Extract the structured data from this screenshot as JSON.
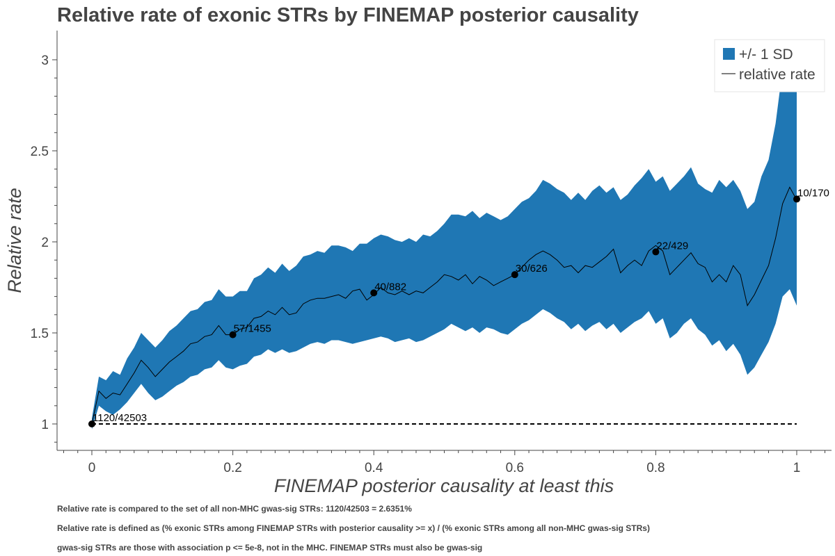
{
  "chart_data": {
    "type": "area",
    "title": "Relative rate of exonic STRs by FINEMAP posterior causality",
    "xlabel": "FINEMAP posterior causality at least this",
    "ylabel": "Relative rate",
    "xlim": [
      -0.05,
      1.05
    ],
    "ylim": [
      0.87,
      3.12
    ],
    "x_ticks": [
      0,
      0.2,
      0.4,
      0.6,
      0.8,
      1
    ],
    "x_tick_labels": [
      "0",
      "0.2",
      "0.4",
      "0.6",
      "0.8",
      "1"
    ],
    "y_ticks": [
      1,
      1.5,
      2,
      2.5,
      3
    ],
    "y_tick_labels": [
      "1",
      "1.5",
      "2",
      "2.5",
      "3"
    ],
    "grid": false,
    "legend_position": "top-right",
    "band_color": "#1f77b4",
    "line_color": "#000000",
    "baseline": 1,
    "series": [
      {
        "name": "+/- 1 SD",
        "kind": "band",
        "x": [
          0,
          0.01,
          0.02,
          0.03,
          0.04,
          0.05,
          0.06,
          0.07,
          0.08,
          0.09,
          0.1,
          0.11,
          0.12,
          0.13,
          0.14,
          0.15,
          0.16,
          0.17,
          0.18,
          0.19,
          0.2,
          0.21,
          0.22,
          0.23,
          0.24,
          0.25,
          0.26,
          0.27,
          0.28,
          0.29,
          0.3,
          0.31,
          0.32,
          0.33,
          0.34,
          0.35,
          0.36,
          0.37,
          0.38,
          0.39,
          0.4,
          0.41,
          0.42,
          0.43,
          0.44,
          0.45,
          0.46,
          0.47,
          0.48,
          0.49,
          0.5,
          0.51,
          0.52,
          0.53,
          0.54,
          0.55,
          0.56,
          0.57,
          0.58,
          0.59,
          0.6,
          0.61,
          0.62,
          0.63,
          0.64,
          0.65,
          0.66,
          0.67,
          0.68,
          0.69,
          0.7,
          0.71,
          0.72,
          0.73,
          0.74,
          0.75,
          0.76,
          0.77,
          0.78,
          0.79,
          0.8,
          0.81,
          0.82,
          0.83,
          0.84,
          0.85,
          0.86,
          0.87,
          0.88,
          0.89,
          0.9,
          0.91,
          0.92,
          0.93,
          0.94,
          0.95,
          0.96,
          0.97,
          0.98,
          0.99,
          1.0
        ],
        "upper": [
          1.03,
          1.26,
          1.24,
          1.29,
          1.27,
          1.36,
          1.42,
          1.5,
          1.46,
          1.42,
          1.46,
          1.51,
          1.54,
          1.58,
          1.62,
          1.63,
          1.67,
          1.68,
          1.74,
          1.7,
          1.7,
          1.73,
          1.73,
          1.8,
          1.82,
          1.86,
          1.83,
          1.88,
          1.84,
          1.87,
          1.92,
          1.93,
          1.95,
          1.94,
          1.98,
          1.98,
          1.97,
          1.95,
          1.99,
          1.99,
          2.02,
          2.04,
          2.03,
          2.01,
          2.0,
          2.02,
          2.0,
          2.04,
          2.03,
          2.06,
          2.1,
          2.15,
          2.15,
          2.14,
          2.17,
          2.13,
          2.16,
          2.14,
          2.12,
          2.14,
          2.18,
          2.22,
          2.24,
          2.28,
          2.34,
          2.32,
          2.29,
          2.27,
          2.23,
          2.27,
          2.23,
          2.28,
          2.31,
          2.27,
          2.3,
          2.23,
          2.26,
          2.31,
          2.35,
          2.4,
          2.33,
          2.36,
          2.28,
          2.32,
          2.36,
          2.41,
          2.32,
          2.29,
          2.27,
          2.34,
          2.3,
          2.34,
          2.28,
          2.18,
          2.22,
          2.36,
          2.45,
          2.65,
          2.95,
          3.08,
          3.08
        ],
        "lower": [
          0.97,
          1.1,
          1.07,
          1.05,
          1.08,
          1.12,
          1.17,
          1.22,
          1.17,
          1.13,
          1.15,
          1.18,
          1.21,
          1.23,
          1.26,
          1.27,
          1.3,
          1.31,
          1.35,
          1.31,
          1.3,
          1.32,
          1.33,
          1.37,
          1.38,
          1.41,
          1.39,
          1.41,
          1.39,
          1.4,
          1.42,
          1.44,
          1.45,
          1.44,
          1.46,
          1.46,
          1.45,
          1.44,
          1.45,
          1.46,
          1.47,
          1.48,
          1.47,
          1.45,
          1.46,
          1.47,
          1.45,
          1.46,
          1.48,
          1.5,
          1.52,
          1.55,
          1.53,
          1.51,
          1.53,
          1.5,
          1.53,
          1.52,
          1.5,
          1.49,
          1.52,
          1.55,
          1.57,
          1.6,
          1.63,
          1.61,
          1.58,
          1.56,
          1.52,
          1.55,
          1.51,
          1.54,
          1.56,
          1.52,
          1.55,
          1.5,
          1.53,
          1.56,
          1.58,
          1.62,
          1.55,
          1.58,
          1.47,
          1.5,
          1.55,
          1.58,
          1.52,
          1.49,
          1.43,
          1.46,
          1.4,
          1.44,
          1.38,
          1.27,
          1.31,
          1.38,
          1.45,
          1.55,
          1.7,
          1.74,
          1.65
        ]
      },
      {
        "name": "relative rate",
        "kind": "line",
        "x": [
          0,
          0.01,
          0.02,
          0.03,
          0.04,
          0.05,
          0.06,
          0.07,
          0.08,
          0.09,
          0.1,
          0.11,
          0.12,
          0.13,
          0.14,
          0.15,
          0.16,
          0.17,
          0.18,
          0.19,
          0.2,
          0.21,
          0.22,
          0.23,
          0.24,
          0.25,
          0.26,
          0.27,
          0.28,
          0.29,
          0.3,
          0.31,
          0.32,
          0.33,
          0.34,
          0.35,
          0.36,
          0.37,
          0.38,
          0.39,
          0.4,
          0.41,
          0.42,
          0.43,
          0.44,
          0.45,
          0.46,
          0.47,
          0.48,
          0.49,
          0.5,
          0.51,
          0.52,
          0.53,
          0.54,
          0.55,
          0.56,
          0.57,
          0.58,
          0.59,
          0.6,
          0.61,
          0.62,
          0.63,
          0.64,
          0.65,
          0.66,
          0.67,
          0.68,
          0.69,
          0.7,
          0.71,
          0.72,
          0.73,
          0.74,
          0.75,
          0.76,
          0.77,
          0.78,
          0.79,
          0.8,
          0.81,
          0.82,
          0.83,
          0.84,
          0.85,
          0.86,
          0.87,
          0.88,
          0.89,
          0.9,
          0.91,
          0.92,
          0.93,
          0.94,
          0.95,
          0.96,
          0.97,
          0.98,
          0.99,
          1.0
        ],
        "y": [
          1.0,
          1.18,
          1.14,
          1.17,
          1.16,
          1.22,
          1.28,
          1.35,
          1.31,
          1.26,
          1.3,
          1.34,
          1.37,
          1.4,
          1.44,
          1.45,
          1.48,
          1.49,
          1.54,
          1.49,
          1.49,
          1.52,
          1.53,
          1.58,
          1.59,
          1.62,
          1.6,
          1.64,
          1.6,
          1.61,
          1.66,
          1.68,
          1.69,
          1.69,
          1.7,
          1.71,
          1.69,
          1.73,
          1.74,
          1.68,
          1.71,
          1.75,
          1.72,
          1.71,
          1.73,
          1.71,
          1.73,
          1.72,
          1.75,
          1.78,
          1.82,
          1.81,
          1.79,
          1.82,
          1.77,
          1.81,
          1.79,
          1.76,
          1.78,
          1.8,
          1.82,
          1.86,
          1.9,
          1.93,
          1.95,
          1.93,
          1.9,
          1.86,
          1.87,
          1.83,
          1.87,
          1.86,
          1.89,
          1.92,
          1.96,
          1.83,
          1.87,
          1.9,
          1.87,
          1.95,
          1.98,
          1.95,
          1.82,
          1.86,
          1.9,
          1.94,
          1.88,
          1.86,
          1.78,
          1.82,
          1.78,
          1.87,
          1.82,
          1.65,
          1.71,
          1.79,
          1.87,
          2.02,
          2.21,
          2.3,
          2.23
        ]
      }
    ],
    "points": [
      {
        "x": 0.0,
        "y": 1.0,
        "label": "1120/42503"
      },
      {
        "x": 0.2,
        "y": 1.49,
        "label": "57/1455"
      },
      {
        "x": 0.4,
        "y": 1.72,
        "label": "40/882"
      },
      {
        "x": 0.6,
        "y": 1.82,
        "label": "30/626"
      },
      {
        "x": 0.8,
        "y": 1.945,
        "label": "22/429"
      },
      {
        "x": 1.0,
        "y": 2.235,
        "label": "10/170"
      }
    ]
  },
  "notes": [
    "Relative rate is compared to the set of all non-MHC gwas-sig STRs: 1120/42503 = 2.6351%",
    "Relative rate is defined as (% exonic STRs among FINEMAP STRs with posterior causality >= x) / (% exonic STRs among all non-MHC gwas-sig STRs)",
    "gwas-sig STRs are those with association p <= 5e-8, not in the MHC. FINEMAP STRs must also be gwas-sig"
  ]
}
